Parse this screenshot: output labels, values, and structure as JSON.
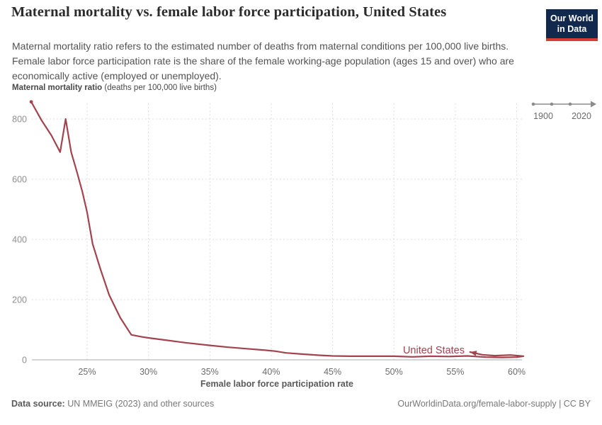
{
  "header": {
    "title": "Maternal mortality vs. female labor force participation, United States",
    "subtitle": "Maternal mortality ratio refers to the estimated number of deaths from maternal conditions per 100,000 live births. Female labor force participation rate is the share of the female working-age population (ages 15 and over) who are economically active (employed or unemployed).",
    "logo_line1": "Our World",
    "logo_line2": "in Data",
    "logo_bg": "#12294e",
    "logo_accent": "#d63b34"
  },
  "timeline": {
    "start": "1900",
    "end": "2020"
  },
  "chart_data": {
    "type": "line",
    "title": "Maternal mortality vs. female labor force participation, United States",
    "xlabel": "Female labor force participation rate",
    "ylabel_bold": "Maternal mortality ratio",
    "ylabel_unit": " (deaths per 100,000 live births)",
    "xlim": [
      20.5,
      60.43
    ],
    "ylim": [
      0,
      866
    ],
    "x_tick_values": [
      25,
      30,
      35,
      40,
      45,
      50,
      55,
      60
    ],
    "x_tick_labels": [
      "25%",
      "30%",
      "35%",
      "40%",
      "45%",
      "50%",
      "55%",
      "60%"
    ],
    "y_tick_values": [
      0,
      200,
      400,
      600,
      800
    ],
    "grid": true,
    "legend_position": "inline-end-of-line",
    "time_range": "1900-2020",
    "series": [
      {
        "name": "United States",
        "color": "#a2434e",
        "x_name": "female_labor_force_participation_pct",
        "y_name": "maternal_mortality_per_100k_live_births",
        "points": [
          [
            20.45,
            857
          ],
          [
            21.3,
            795
          ],
          [
            22.1,
            745
          ],
          [
            22.8,
            690
          ],
          [
            23.25,
            800
          ],
          [
            23.7,
            690
          ],
          [
            24.2,
            620
          ],
          [
            24.6,
            560
          ],
          [
            25.0,
            490
          ],
          [
            25.3,
            420
          ],
          [
            25.45,
            385
          ],
          [
            26.1,
            300
          ],
          [
            26.8,
            215
          ],
          [
            27.7,
            140
          ],
          [
            28.6,
            83
          ],
          [
            29.5,
            76
          ],
          [
            30.0,
            73
          ],
          [
            31.5,
            65
          ],
          [
            33.0,
            57
          ],
          [
            35.0,
            48
          ],
          [
            36.5,
            42
          ],
          [
            38.0,
            37
          ],
          [
            39.5,
            32
          ],
          [
            40.3,
            29
          ],
          [
            41.2,
            23
          ],
          [
            42.5,
            19
          ],
          [
            44.0,
            15
          ],
          [
            45.0,
            13
          ],
          [
            46.5,
            12
          ],
          [
            48.0,
            12
          ],
          [
            50.0,
            12
          ],
          [
            51.5,
            10
          ],
          [
            53.0,
            12
          ],
          [
            54.5,
            11
          ],
          [
            56.0,
            13
          ],
          [
            57.5,
            9
          ],
          [
            58.8,
            8
          ],
          [
            60.0,
            9
          ],
          [
            60.55,
            12
          ],
          [
            59.5,
            16
          ],
          [
            58.2,
            14
          ],
          [
            57.2,
            17
          ],
          [
            56.2,
            26
          ]
        ]
      }
    ]
  },
  "footer": {
    "source_label": "Data source:",
    "source_value": " UN MMEIG (2023) and other sources",
    "url": "OurWorldinData.org/female-labor-supply | CC BY"
  }
}
